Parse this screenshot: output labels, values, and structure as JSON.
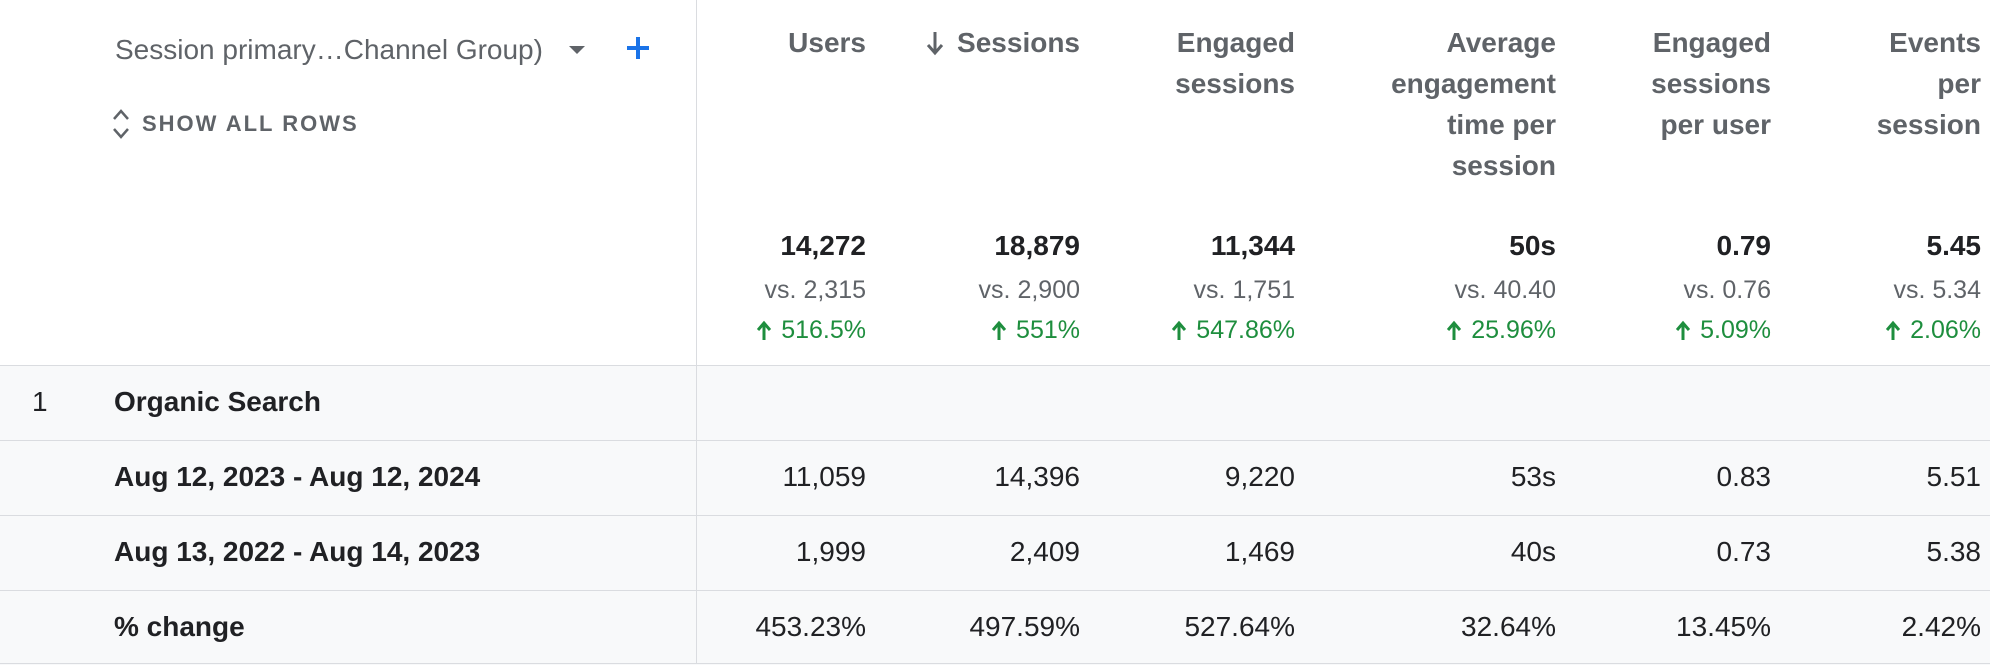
{
  "dimension": {
    "label": "Session primary…Channel Group)",
    "show_all_rows": "SHOW ALL ROWS"
  },
  "columns": [
    {
      "lines": [
        "Users"
      ],
      "sorted": false
    },
    {
      "lines": [
        "Sessions"
      ],
      "sorted": true
    },
    {
      "lines": [
        "Engaged",
        "sessions"
      ],
      "sorted": false
    },
    {
      "lines": [
        "Average",
        "engagement",
        "time per",
        "session"
      ],
      "sorted": false
    },
    {
      "lines": [
        "Engaged",
        "sessions",
        "per user"
      ],
      "sorted": false
    },
    {
      "lines": [
        "Events",
        "per",
        "session"
      ],
      "sorted": false
    }
  ],
  "totals": [
    {
      "value": "14,272",
      "vs": "vs. 2,315",
      "change": "516.5%"
    },
    {
      "value": "18,879",
      "vs": "vs. 2,900",
      "change": "551%"
    },
    {
      "value": "11,344",
      "vs": "vs. 1,751",
      "change": "547.86%"
    },
    {
      "value": "50s",
      "vs": "vs. 40.40",
      "change": "25.96%"
    },
    {
      "value": "0.79",
      "vs": "vs. 0.76",
      "change": "5.09%"
    },
    {
      "value": "5.45",
      "vs": "vs. 5.34",
      "change": "2.06%"
    }
  ],
  "group": {
    "index": "1",
    "label": "Organic Search"
  },
  "rows": [
    {
      "label": "Aug 12, 2023 - Aug 12, 2024",
      "values": [
        "11,059",
        "14,396",
        "9,220",
        "53s",
        "0.83",
        "5.51"
      ]
    },
    {
      "label": "Aug 13, 2022 - Aug 14, 2023",
      "values": [
        "1,999",
        "2,409",
        "1,469",
        "40s",
        "0.73",
        "5.38"
      ]
    },
    {
      "label": "% change",
      "values": [
        "453.23%",
        "497.59%",
        "527.64%",
        "32.64%",
        "13.45%",
        "2.42%"
      ]
    }
  ],
  "colors": {
    "positive": "#1e8e3e",
    "accent": "#1a73e8"
  }
}
